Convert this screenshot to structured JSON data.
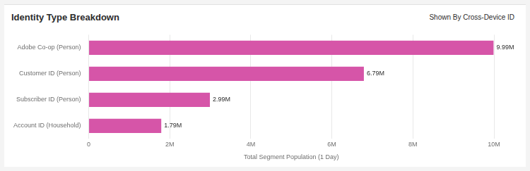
{
  "chart_data": {
    "type": "bar",
    "orientation": "horizontal",
    "title": "Identity Type Breakdown",
    "subtitle": "Shown By Cross-Device ID",
    "x_label": "Total Segment Population (1 Day)",
    "categories": [
      "Adobe Co-op (Person)",
      "Customer ID (Person)",
      "Subscriber ID (Person)",
      "Account ID (Household)"
    ],
    "values": [
      9990000,
      6790000,
      2990000,
      1790000
    ],
    "value_labels": [
      "9.99M",
      "6.79M",
      "2.99M",
      "1.79M"
    ],
    "data_labels": true,
    "color": "#d655a8",
    "xlim": [
      0,
      10000000
    ],
    "xticks": [
      0,
      {
        "value": 2000000,
        "label": "2M"
      },
      {
        "value": 4000000,
        "label": "4M"
      },
      {
        "value": 6000000,
        "label": "6M"
      },
      {
        "value": 8000000,
        "label": "8M"
      },
      {
        "value": 10000000,
        "label": "10M"
      }
    ],
    "grid": true
  }
}
